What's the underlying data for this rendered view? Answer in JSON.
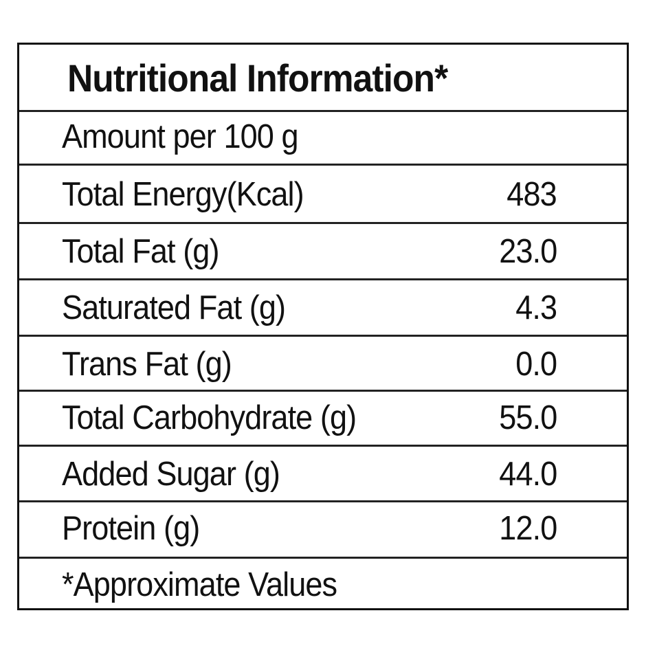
{
  "title": "Nutritional Information*",
  "serving": "Amount per 100 g",
  "rows": [
    {
      "label": "Total Energy(Kcal)",
      "value": "483"
    },
    {
      "label": "Total Fat (g)",
      "value": "23.0"
    },
    {
      "label": "Saturated Fat (g)",
      "value": "4.3"
    },
    {
      "label": "Trans Fat (g)",
      "value": "0.0"
    },
    {
      "label": "Total Carbohydrate (g)",
      "value": "55.0"
    },
    {
      "label": "Added Sugar (g)",
      "value": "44.0"
    },
    {
      "label": "Protein (g)",
      "value": "12.0"
    }
  ],
  "footnote": "*Approximate Values"
}
